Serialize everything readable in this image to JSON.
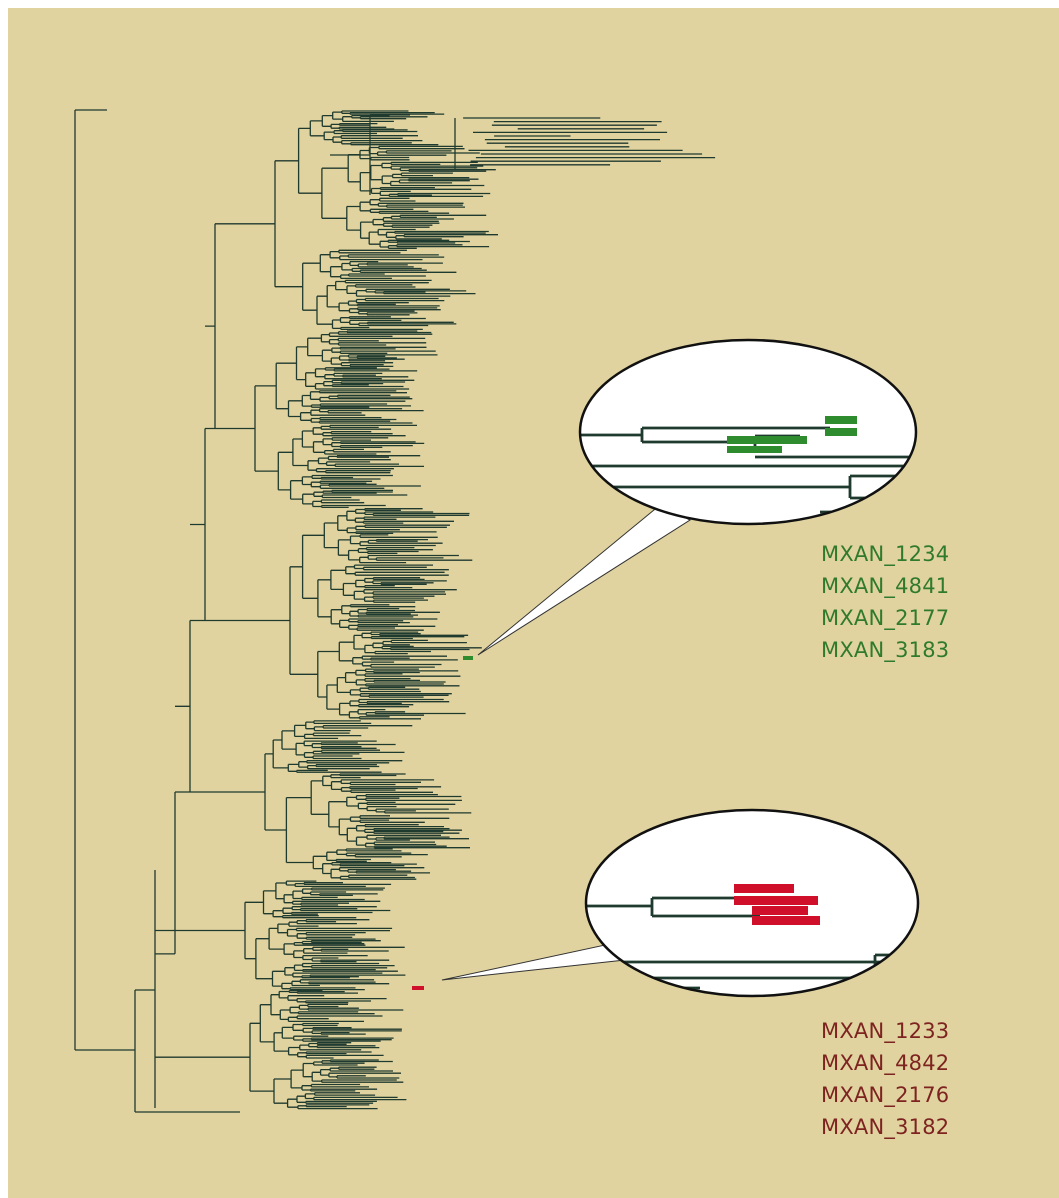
{
  "colors": {
    "background": "#e0d39f",
    "tree_line": "#1f3a2e",
    "highlight_green": "#2e8b2e",
    "highlight_red": "#d0102a",
    "label_green": "#2f7a2d",
    "label_red": "#7d2320"
  },
  "groups": {
    "green": {
      "genes": [
        "MXAN_1234",
        "MXAN_4841",
        "MXAN_2177",
        "MXAN_3183"
      ]
    },
    "red": {
      "genes": [
        "MXAN_1233",
        "MXAN_4842",
        "MXAN_2176",
        "MXAN_3182"
      ]
    }
  }
}
